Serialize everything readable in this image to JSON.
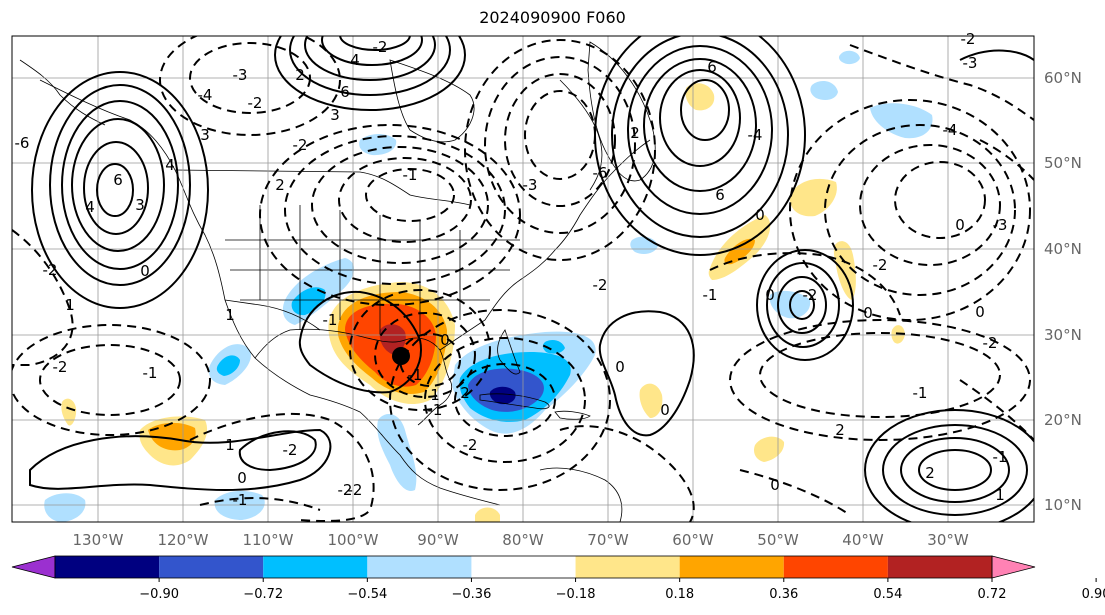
{
  "title": "2024090900 F060",
  "lon_labels": [
    "130°W",
    "120°W",
    "110°W",
    "100°W",
    "90°W",
    "80°W",
    "70°W",
    "60°W",
    "50°W",
    "40°W",
    "30°W"
  ],
  "lat_labels": [
    "10°N",
    "20°N",
    "30°N",
    "40°N",
    "50°N",
    "60°N"
  ],
  "colorbar": {
    "ticks": [
      "−0.90",
      "−0.72",
      "−0.54",
      "−0.36",
      "−0.18",
      "0.18",
      "0.36",
      "0.54",
      "0.72",
      "0.90"
    ],
    "colors": [
      "#9b30d0",
      "#000080",
      "#3355cc",
      "#00bfff",
      "#b0e0ff",
      "#ffffff",
      "#ffe68a",
      "#ffa500",
      "#ff4500",
      "#b22222",
      "#ff82b4"
    ]
  },
  "contour_labels": [
    "-2",
    "2",
    "-3",
    "6",
    "4",
    "-2",
    "3",
    "6",
    "2",
    "-4",
    "-3",
    "-2",
    "2",
    "-6",
    "4",
    "-6",
    "6",
    "-4",
    "-3",
    "6",
    "3",
    "4",
    "-2",
    "-1",
    "-4",
    "0",
    "-3",
    "3",
    "-2",
    "1",
    "-2",
    "-1",
    "0",
    "1",
    "-1",
    "0",
    "2",
    "1",
    "-1",
    "-2",
    "0",
    "-2",
    "-1",
    "0",
    "-2",
    "2",
    "-1",
    "1",
    "1",
    "-2",
    "0",
    "-2",
    "0",
    "0",
    "-1",
    "0",
    "-2",
    "2",
    "-1",
    "-2",
    "0",
    "0",
    "-1",
    "-2"
  ]
}
